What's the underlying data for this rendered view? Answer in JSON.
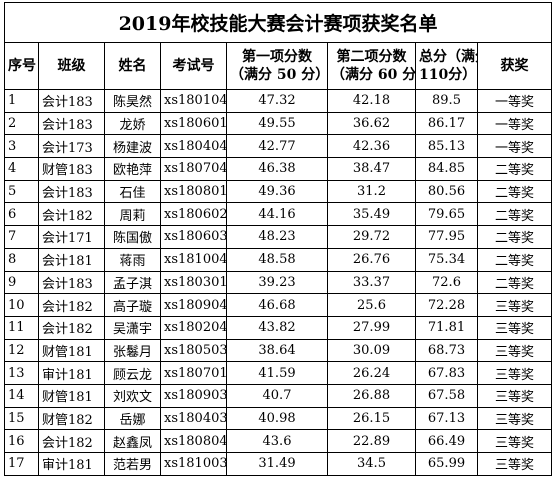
{
  "title": "2019年校技能大赛会计赛项获奖名单",
  "table": {
    "header": [
      [
        "序号"
      ],
      [
        "班级"
      ],
      [
        "姓名"
      ],
      [
        "考试号"
      ],
      [
        "第一项分数",
        "（满分 50 分）"
      ],
      [
        "第二项分数",
        "（满分 60 分）"
      ],
      [
        "总分（满分",
        "110分）"
      ],
      [
        "获奖"
      ]
    ],
    "rows": [
      [
        1,
        "会计183",
        "陈昊然",
        "xs180104",
        "47.32",
        "42.18",
        "89.5",
        "一等奖"
      ],
      [
        2,
        "会计183",
        "龙娇",
        "xs180601",
        "49.55",
        "36.62",
        "86.17",
        "一等奖"
      ],
      [
        3,
        "会计173",
        "杨建波",
        "xs180404",
        "42.77",
        "42.36",
        "85.13",
        "一等奖"
      ],
      [
        4,
        "财管183",
        "欧艳萍",
        "xs180704",
        "46.38",
        "38.47",
        "84.85",
        "二等奖"
      ],
      [
        5,
        "会计183",
        "石佳",
        "xs180801",
        "49.36",
        "31.2",
        "80.56",
        "二等奖"
      ],
      [
        6,
        "会计182",
        "周莉",
        "xs180602",
        "44.16",
        "35.49",
        "79.65",
        "二等奖"
      ],
      [
        7,
        "会计171",
        "陈国傲",
        "xs180603",
        "48.23",
        "29.72",
        "77.95",
        "二等奖"
      ],
      [
        8,
        "会计181",
        "蒋雨",
        "xs181004",
        "48.58",
        "26.76",
        "75.34",
        "二等奖"
      ],
      [
        9,
        "会计183",
        "孟子淇",
        "xs180301",
        "39.23",
        "33.37",
        "72.6",
        "二等奖"
      ],
      [
        10,
        "会计182",
        "高子璇",
        "xs180904",
        "46.68",
        "25.6",
        "72.28",
        "三等奖"
      ],
      [
        11,
        "会计182",
        "吴潇宇",
        "xs180204",
        "43.82",
        "27.99",
        "71.81",
        "三等奖"
      ],
      [
        12,
        "财管181",
        "张鬈月",
        "xs180503",
        "38.64",
        "30.09",
        "68.73",
        "三等奖"
      ],
      [
        13,
        "审计181",
        "顾云龙",
        "xs180701",
        "41.59",
        "26.24",
        "67.83",
        "三等奖"
      ],
      [
        14,
        "财管181",
        "刘欢文",
        "xs180903",
        "40.7",
        "26.88",
        "67.58",
        "三等奖"
      ],
      [
        15,
        "财管182",
        "岳娜",
        "xs180403",
        "40.98",
        "26.15",
        "67.13",
        "三等奖"
      ],
      [
        16,
        "会计182",
        "赵鑫凤",
        "xs180804",
        "43.6",
        "22.89",
        "66.49",
        "三等奖"
      ],
      [
        17,
        "审计181",
        "范若男",
        "xs181003",
        "31.49",
        "34.5",
        "65.99",
        "三等奖"
      ]
    ]
  }
}
